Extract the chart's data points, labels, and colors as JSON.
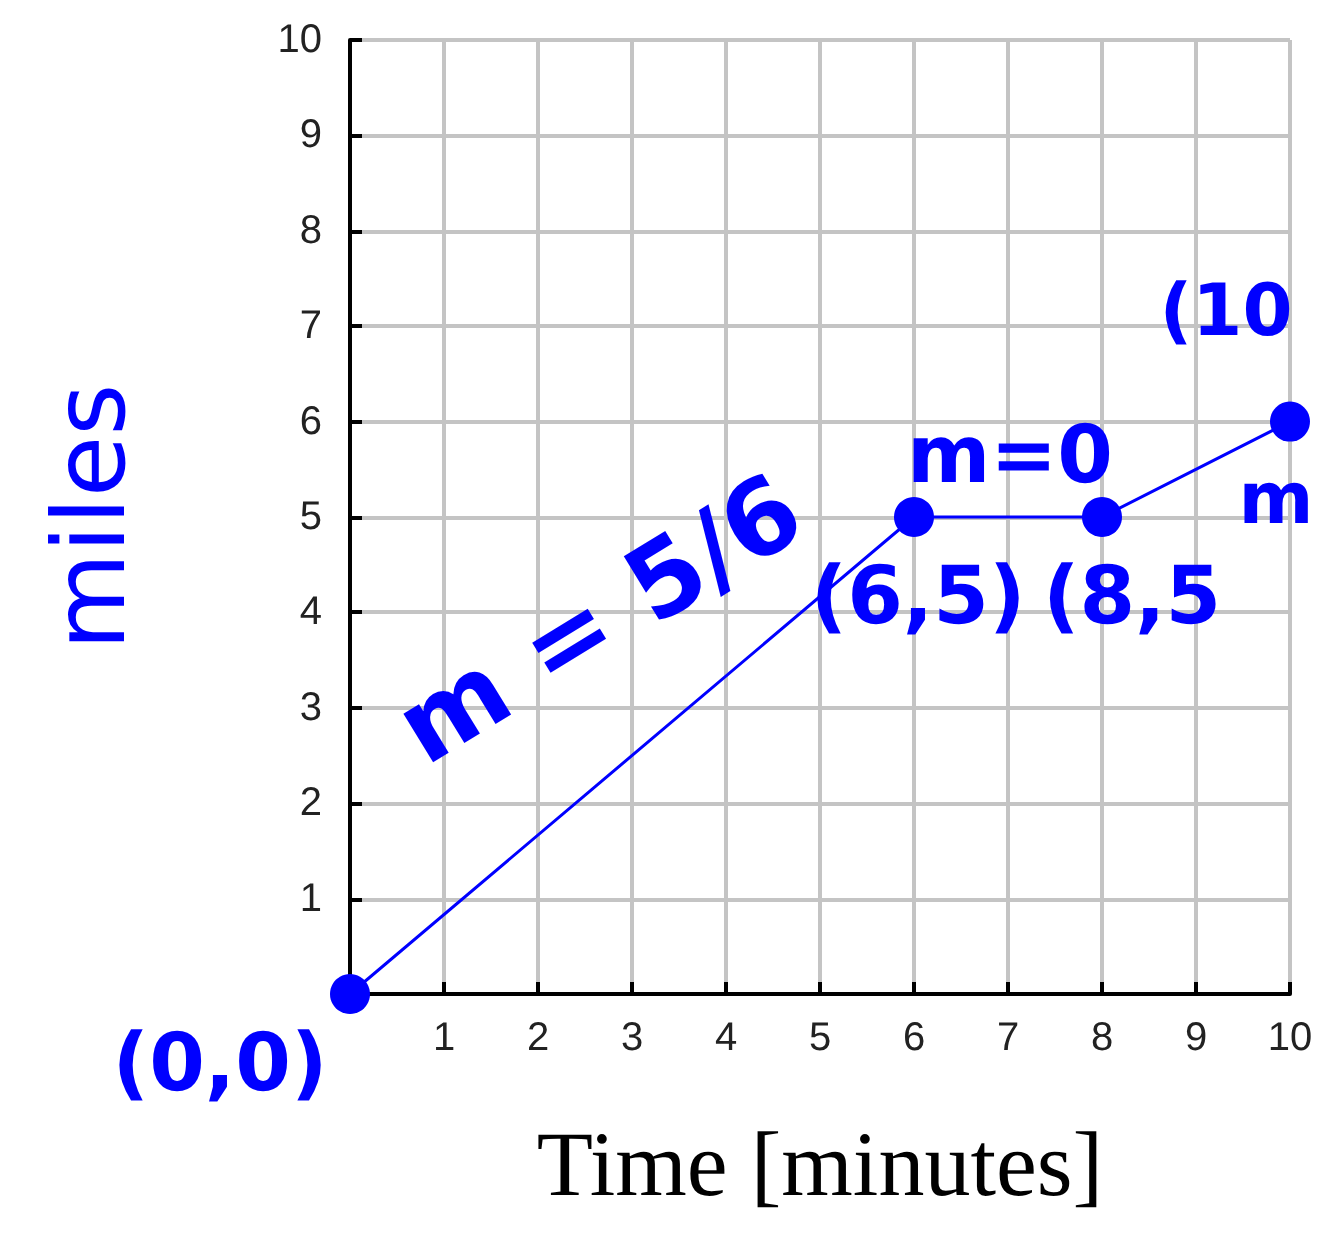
{
  "chart_data": {
    "type": "line",
    "xlabel": "Time [minutes]",
    "ylabel": "miles",
    "x": [
      0,
      6,
      8,
      10
    ],
    "series": [
      {
        "color": "#0000ff",
        "values": [
          0,
          5,
          5,
          6
        ]
      }
    ],
    "xlim": [
      0,
      10
    ],
    "ylim": [
      0,
      10
    ],
    "xticks": [
      {
        "value": 0,
        "label": null
      },
      1,
      2,
      3,
      4,
      5,
      6,
      7,
      8,
      9,
      10
    ],
    "yticks": [
      {
        "value": 0,
        "label": null
      },
      1,
      2,
      3,
      4,
      5,
      6,
      7,
      8,
      9,
      10
    ],
    "grid": true,
    "marker": "circle",
    "line_style": "solid",
    "annotations": [
      {
        "text": "(0,0)",
        "x": 0,
        "y": 0
      },
      "m = 5/6",
      {
        "text": "(6,5)",
        "x": 6,
        "y": 5
      },
      "m=0",
      {
        "text": "(8,5",
        "x": 8,
        "y": 5
      },
      {
        "text": "(10",
        "x": 10,
        "y": 6
      },
      "m"
    ]
  }
}
